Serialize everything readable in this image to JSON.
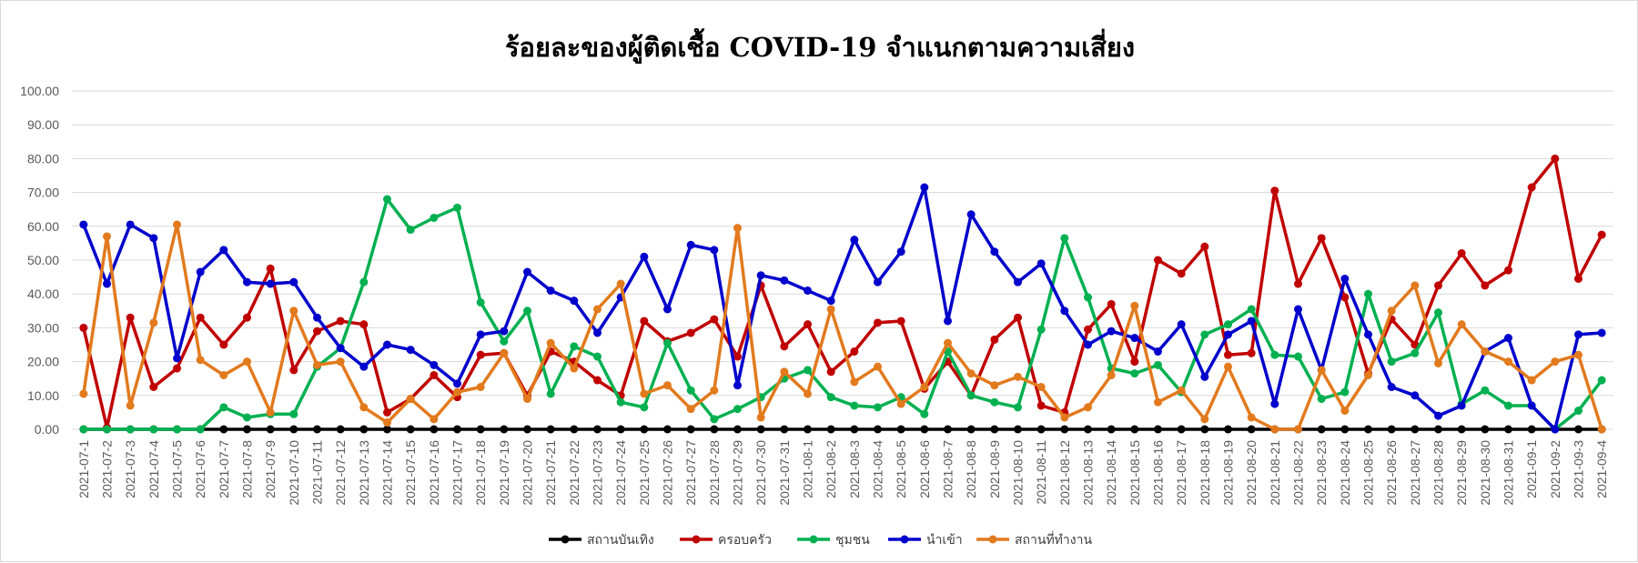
{
  "chart_data": {
    "type": "line",
    "title": "ร้อยละของผู้ติดเชื้อ COVID-19 จำแนกตามความเสี่ยง",
    "xlabel": "",
    "ylabel": "",
    "ylim": [
      0,
      100
    ],
    "yticks": [
      "0.00",
      "10.00",
      "20.00",
      "30.00",
      "40.00",
      "50.00",
      "60.00",
      "70.00",
      "80.00",
      "90.00",
      "100.00"
    ],
    "grid": "horizontal",
    "legend_position": "bottom",
    "x": [
      "2021-07-1",
      "2021-07-2",
      "2021-07-3",
      "2021-07-4",
      "2021-07-5",
      "2021-07-6",
      "2021-07-7",
      "2021-07-8",
      "2021-07-9",
      "2021-07-10",
      "2021-07-11",
      "2021-07-12",
      "2021-07-13",
      "2021-07-14",
      "2021-07-15",
      "2021-07-16",
      "2021-07-17",
      "2021-07-18",
      "2021-07-19",
      "2021-07-20",
      "2021-07-21",
      "2021-07-22",
      "2021-07-23",
      "2021-07-24",
      "2021-07-25",
      "2021-07-26",
      "2021-07-27",
      "2021-07-28",
      "2021-07-29",
      "2021-07-30",
      "2021-07-31",
      "2021-08-1",
      "2021-08-2",
      "2021-08-3",
      "2021-08-4",
      "2021-08-5",
      "2021-08-6",
      "2021-08-7",
      "2021-08-8",
      "2021-08-9",
      "2021-08-10",
      "2021-08-11",
      "2021-08-12",
      "2021-08-13",
      "2021-08-14",
      "2021-08-15",
      "2021-08-16",
      "2021-08-17",
      "2021-08-18",
      "2021-08-19",
      "2021-08-20",
      "2021-08-21",
      "2021-08-22",
      "2021-08-23",
      "2021-08-24",
      "2021-08-25",
      "2021-08-26",
      "2021-08-27",
      "2021-08-28",
      "2021-08-29",
      "2021-08-30",
      "2021-08-31",
      "2021-09-1",
      "2021-09-2",
      "2021-09-3",
      "2021-09-4"
    ],
    "series": [
      {
        "name": "สถานบันเทิง",
        "color": "#000000",
        "values": [
          0,
          0,
          0,
          0,
          0,
          0,
          0,
          0,
          0,
          0,
          0,
          0,
          0,
          0,
          0,
          0,
          0,
          0,
          0,
          0,
          0,
          0,
          0,
          0,
          0,
          0,
          0,
          0,
          0,
          0,
          0,
          0,
          0,
          0,
          0,
          0,
          0,
          0,
          0,
          0,
          0,
          0,
          0,
          0,
          0,
          0,
          0,
          0,
          0,
          0,
          0,
          0,
          0,
          0,
          0,
          0,
          0,
          0,
          0,
          0,
          0,
          0,
          0,
          0,
          0,
          0
        ]
      },
      {
        "name": "ครอบครัว",
        "color": "#C00000",
        "values": [
          30,
          0.5,
          33,
          12.5,
          18,
          33,
          25,
          33,
          47.5,
          17.5,
          29,
          32,
          31,
          5,
          9,
          16,
          9.5,
          22,
          22.5,
          10,
          23,
          20,
          14.5,
          10,
          32,
          26,
          28.5,
          32.5,
          21.5,
          42.5,
          24.5,
          31,
          17,
          23,
          31.5,
          32,
          12,
          20,
          10,
          26.5,
          33,
          7,
          5,
          29.5,
          37,
          20,
          50,
          46,
          54,
          22,
          22.5,
          70.5,
          43,
          56.5,
          39,
          16.5,
          32.5,
          25,
          42.5,
          52,
          42.5,
          47,
          71.5,
          80,
          44.5,
          57.5
        ]
      },
      {
        "name": "ชุมชน",
        "color": "#00B050",
        "values": [
          0,
          0,
          0,
          0,
          0,
          0,
          6.5,
          3.5,
          4.5,
          4.5,
          18.5,
          24,
          43.5,
          68,
          59,
          62.5,
          65.5,
          37.5,
          26,
          35,
          10.5,
          24.5,
          21.5,
          8,
          6.5,
          25.5,
          11.5,
          3,
          6,
          9.5,
          15,
          17.5,
          9.5,
          7,
          6.5,
          9.5,
          4.5,
          23,
          10,
          8,
          6.5,
          29.5,
          56.5,
          39,
          18,
          16.5,
          19,
          11,
          28,
          31,
          35.5,
          22,
          21.5,
          9,
          11,
          40,
          20,
          22.5,
          34.5,
          7.5,
          11.5,
          7,
          7,
          0,
          5.5,
          14.5
        ]
      },
      {
        "name": "นำเข้า",
        "color": "#0000CC",
        "values": [
          60.5,
          43,
          60.5,
          56.5,
          21,
          46.5,
          53,
          43.5,
          43,
          43.5,
          33,
          24,
          18.5,
          25,
          23.5,
          19,
          13.5,
          28,
          29,
          46.5,
          41,
          38,
          28.5,
          39,
          51,
          35.5,
          54.5,
          53,
          13,
          45.5,
          44,
          41,
          38,
          56,
          43.5,
          52.5,
          71.5,
          32,
          63.5,
          52.5,
          43.5,
          49,
          35,
          25,
          29,
          27,
          23,
          31,
          15.5,
          28,
          32,
          7.5,
          35.5,
          17.5,
          44.5,
          28,
          12.5,
          10,
          4,
          7,
          23,
          27,
          7,
          0,
          28,
          28.5
        ]
      },
      {
        "name": "สถานที่ทำงาน",
        "color": "#E27A1E",
        "values": [
          10.5,
          57,
          7,
          31.5,
          60.5,
          20.5,
          16,
          20,
          5,
          35,
          19,
          20,
          6.5,
          2,
          9,
          3,
          11,
          12.5,
          22.5,
          9,
          25.5,
          18,
          35.5,
          43,
          10.5,
          13,
          6,
          11.5,
          59.5,
          3.5,
          17,
          10.5,
          35.5,
          14,
          18.5,
          7.5,
          12.5,
          25.5,
          16.5,
          13,
          15.5,
          12.5,
          3.5,
          6.5,
          16,
          36.5,
          8,
          11.5,
          3,
          18.5,
          3.5,
          0,
          0,
          17.5,
          5.5,
          16,
          35,
          42.5,
          19.5,
          31,
          23,
          20,
          14.5,
          20,
          22,
          0
        ]
      }
    ]
  }
}
